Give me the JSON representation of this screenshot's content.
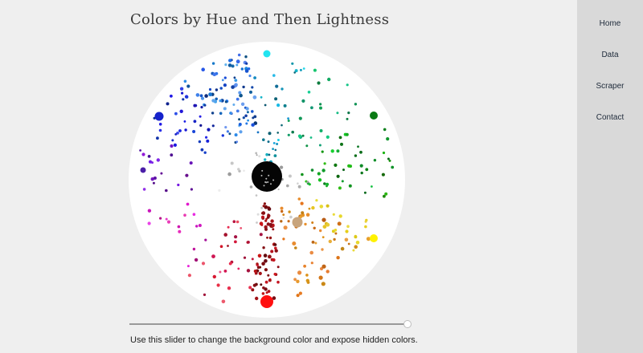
{
  "page": {
    "title": "Colors by Hue and Then Lightness",
    "slider_caption": "Use this slider to change the background color and expose hidden colors.",
    "slider_value": 0.98
  },
  "nav": {
    "items": [
      {
        "label": "Home"
      },
      {
        "label": "Data"
      },
      {
        "label": "Scraper"
      },
      {
        "label": "Contact"
      }
    ]
  },
  "colors": {
    "page_bg": "#efefef",
    "sidebar_bg": "#d9d9d9",
    "wheel_bg": "#ffffff",
    "nav_text": "#1e2a3a"
  }
}
